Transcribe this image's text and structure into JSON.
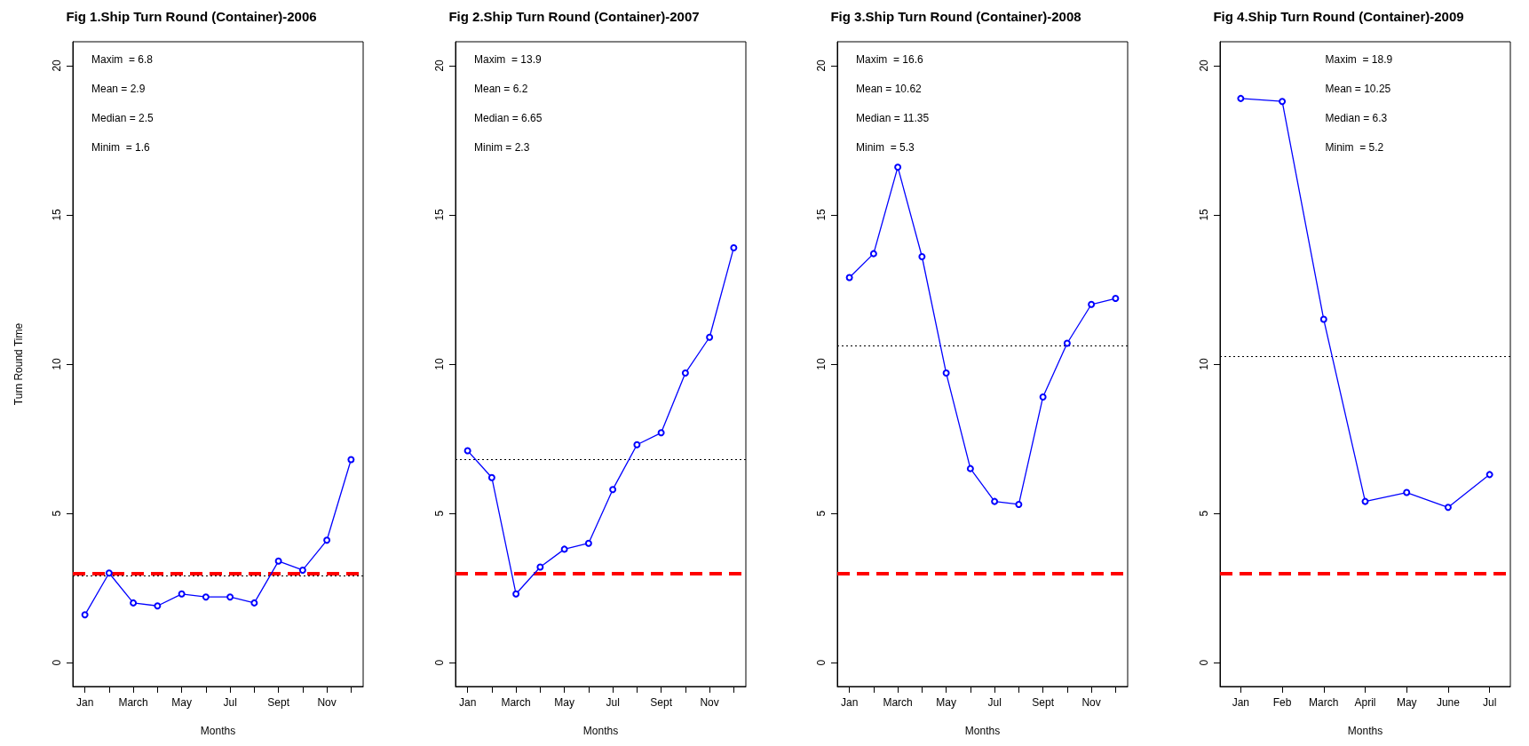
{
  "chart_data": [
    {
      "type": "line",
      "title": "Fig 1.Ship Turn Round (Container)-2006",
      "xlabel": "Months",
      "ylabel": "Turn Round Time",
      "categories": [
        "Jan",
        null,
        "March",
        null,
        "May",
        null,
        "Jul",
        null,
        "Sept",
        null,
        "Nov",
        null
      ],
      "series": [
        {
          "color": "#0000ff",
          "values": [
            1.6,
            3.0,
            2.0,
            1.9,
            2.3,
            2.2,
            2.2,
            2.0,
            3.4,
            3.1,
            4.1,
            6.8
          ]
        }
      ],
      "ylim": [
        -0.8,
        20.8
      ],
      "yticks": [
        0,
        5,
        10,
        15,
        20
      ],
      "marker": "circle",
      "line_style": "solid",
      "grid": false,
      "ref_lines": [
        {
          "axis": "y",
          "value": 3,
          "color": "#ff0000",
          "line_style": "dashed"
        },
        {
          "axis": "y",
          "value": 2.9,
          "color": "#000000",
          "line_style": "dotted"
        }
      ],
      "annotations": [
        "Maxim  = 6.8",
        "Mean = 2.9",
        "Median = 2.5",
        "Minim  = 1.6"
      ]
    },
    {
      "type": "line",
      "title": "Fig 2.Ship Turn Round (Container)-2007",
      "xlabel": "Months",
      "categories": [
        "Jan",
        null,
        "March",
        null,
        "May",
        null,
        "Jul",
        null,
        "Sept",
        null,
        "Nov",
        null
      ],
      "series": [
        {
          "color": "#0000ff",
          "values": [
            7.1,
            6.2,
            2.3,
            3.2,
            3.8,
            4.0,
            5.8,
            7.3,
            7.7,
            9.7,
            10.9,
            13.9
          ]
        }
      ],
      "ylim": [
        -0.8,
        20.8
      ],
      "yticks": [
        0,
        5,
        10,
        15,
        20
      ],
      "marker": "circle",
      "line_style": "solid",
      "grid": false,
      "ref_lines": [
        {
          "axis": "y",
          "value": 3,
          "color": "#ff0000",
          "line_style": "dashed"
        },
        {
          "axis": "y",
          "value": 6.8,
          "color": "#000000",
          "line_style": "dotted"
        }
      ],
      "annotations": [
        "Maxim  = 13.9",
        "Mean = 6.2",
        "Median = 6.65",
        "Minim = 2.3"
      ]
    },
    {
      "type": "line",
      "title": "Fig 3.Ship Turn Round (Container)-2008",
      "xlabel": "Months",
      "categories": [
        "Jan",
        null,
        "March",
        null,
        "May",
        null,
        "Jul",
        null,
        "Sept",
        null,
        "Nov",
        null
      ],
      "series": [
        {
          "color": "#0000ff",
          "values": [
            12.9,
            13.7,
            16.6,
            13.6,
            9.7,
            6.5,
            5.4,
            5.3,
            8.9,
            10.7,
            12.0,
            12.2
          ]
        }
      ],
      "ylim": [
        -0.8,
        20.8
      ],
      "yticks": [
        0,
        5,
        10,
        15,
        20
      ],
      "marker": "circle",
      "line_style": "solid",
      "grid": false,
      "ref_lines": [
        {
          "axis": "y",
          "value": 3,
          "color": "#ff0000",
          "line_style": "dashed"
        },
        {
          "axis": "y",
          "value": 10.62,
          "color": "#000000",
          "line_style": "dotted"
        }
      ],
      "annotations": [
        "Maxim  = 16.6",
        "Mean = 10.62",
        "Median = 11.35",
        "Minim  = 5.3"
      ]
    },
    {
      "type": "line",
      "title": "Fig 4.Ship Turn Round (Container)-2009",
      "xlabel": "Months",
      "categories": [
        "Jan",
        "Feb",
        "March",
        "April",
        "May",
        "June",
        "Jul"
      ],
      "series": [
        {
          "color": "#0000ff",
          "values": [
            18.9,
            18.8,
            11.5,
            5.4,
            5.7,
            5.2,
            6.3
          ]
        }
      ],
      "ylim": [
        -0.8,
        20.8
      ],
      "yticks": [
        0,
        5,
        10,
        15,
        20
      ],
      "marker": "circle",
      "line_style": "solid",
      "grid": false,
      "ref_lines": [
        {
          "axis": "y",
          "value": 3,
          "color": "#ff0000",
          "line_style": "dashed"
        },
        {
          "axis": "y",
          "value": 10.25,
          "color": "#000000",
          "line_style": "dotted"
        }
      ],
      "annotations": [
        "Maxim  = 18.9",
        "Mean = 10.25",
        "Median = 6.3",
        "Minim  = 5.2"
      ]
    }
  ]
}
